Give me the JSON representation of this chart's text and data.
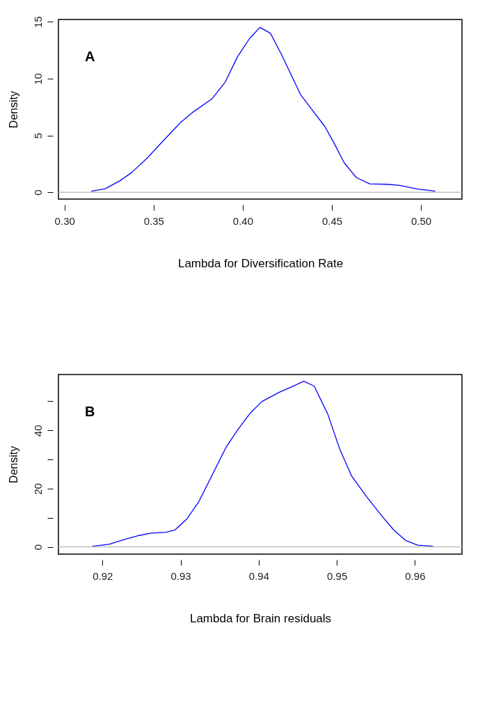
{
  "chart_data": [
    {
      "type": "line",
      "xlabel": "Lambda for Diversification Rate",
      "ylabel": "Density",
      "annotations": [
        "A"
      ],
      "x": [
        0.315,
        0.3226,
        0.331,
        0.3378,
        0.3463,
        0.3564,
        0.3649,
        0.3716,
        0.3826,
        0.3902,
        0.397,
        0.4037,
        0.4096,
        0.4155,
        0.4215,
        0.4274,
        0.4324,
        0.4392,
        0.446,
        0.451,
        0.4569,
        0.4637,
        0.4713,
        0.4814,
        0.4882,
        0.4983,
        0.5081
      ],
      "series": [
        {
          "color": "#0000ff",
          "values": [
            0.1,
            0.3,
            1.0,
            1.75,
            3.0,
            4.7,
            6.1,
            7.0,
            8.2,
            9.7,
            11.9,
            13.5,
            14.5,
            14.0,
            12.2,
            10.25,
            8.6,
            7.2,
            5.8,
            4.4,
            2.6,
            1.3,
            0.74,
            0.7,
            0.6,
            0.28,
            0.1
          ]
        }
      ],
      "xlim": [
        0.2966,
        0.523
      ],
      "ylim": [
        -0.6,
        15.2
      ],
      "xticks": [
        {
          "value": 0.3,
          "label": "0.30"
        },
        0.35,
        {
          "value": 0.4,
          "label": "0.40"
        },
        0.45,
        {
          "value": 0.5,
          "label": "0.50"
        }
      ],
      "yticks": [
        0,
        5,
        10,
        15
      ],
      "ref_lines": [
        {
          "axis": "y",
          "value": 0,
          "color": "#c0c0c0"
        }
      ],
      "grid": false,
      "marker": "none",
      "line_style": "solid"
    },
    {
      "type": "line",
      "xlabel": "Lambda for Brain residuals",
      "ylabel": "Density",
      "annotations": [
        "B"
      ],
      "x": [
        0.91873,
        0.92084,
        0.92276,
        0.92468,
        0.92621,
        0.92813,
        0.92928,
        0.93081,
        0.93235,
        0.93388,
        0.9358,
        0.93733,
        0.93887,
        0.9404,
        0.9427,
        0.94424,
        0.94577,
        0.94711,
        0.94884,
        0.95037,
        0.9519,
        0.95382,
        0.95574,
        0.95728,
        0.95881,
        0.96035,
        0.96234
      ],
      "series": [
        {
          "color": "#0000ff",
          "values": [
            0.2,
            0.9,
            2.5,
            3.9,
            4.7,
            5.0,
            5.8,
            9.6,
            15.6,
            23.8,
            34.1,
            40.3,
            45.8,
            49.9,
            53.2,
            55.0,
            56.9,
            55.2,
            45.6,
            33.6,
            24.3,
            17.2,
            10.7,
            5.8,
            2.2,
            0.6,
            0.2
          ]
        }
      ],
      "xlim": [
        0.91436,
        0.96602
      ],
      "ylim": [
        -2.5,
        59.2
      ],
      "xticks": [
        0.92,
        0.93,
        0.94,
        0.95,
        0.96
      ],
      "yticks": [
        0,
        {
          "value": 10,
          "label": null
        },
        20,
        {
          "value": 30,
          "label": null
        },
        40,
        {
          "value": 50,
          "label": null
        }
      ],
      "ref_lines": [
        {
          "axis": "y",
          "value": 0,
          "color": "#c0c0c0"
        }
      ],
      "grid": false,
      "marker": "none",
      "line_style": "solid"
    }
  ]
}
